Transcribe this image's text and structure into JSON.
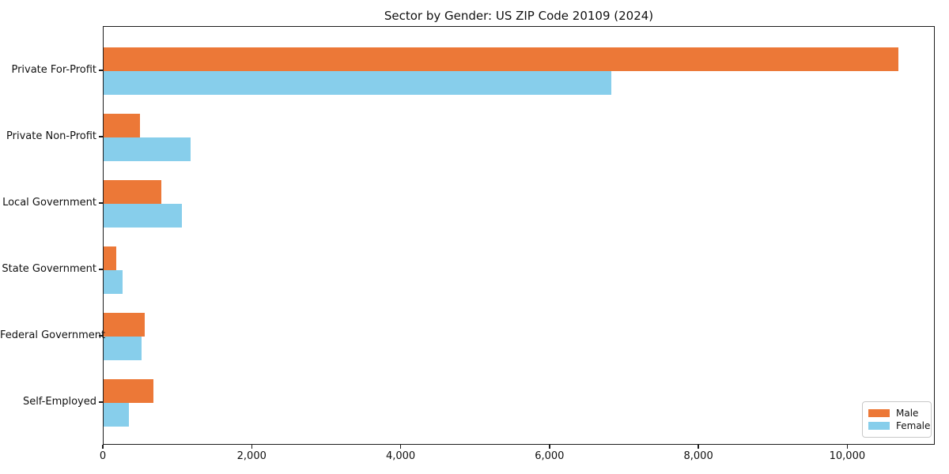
{
  "chart_data": {
    "type": "bar",
    "orientation": "horizontal",
    "title": "Sector by Gender: US ZIP Code 20109 (2024)",
    "categories": [
      "Private For-Profit",
      "Private Non-Profit",
      "Local Government",
      "State Government",
      "Federal Government",
      "Self-Employed"
    ],
    "series": [
      {
        "name": "Male",
        "color": "#ec7837",
        "values": [
          10675,
          490,
          775,
          170,
          550,
          670
        ]
      },
      {
        "name": "Female",
        "color": "#87ceeb",
        "values": [
          6820,
          1170,
          1050,
          255,
          510,
          340
        ]
      }
    ],
    "xlabel": "",
    "ylabel": "",
    "xlim": [
      0,
      11175
    ],
    "x_ticks": [
      {
        "value": 0,
        "label": "0"
      },
      {
        "value": 2000,
        "label": "2,000"
      },
      {
        "value": 4000,
        "label": "4,000"
      },
      {
        "value": 6000,
        "label": "6,000"
      },
      {
        "value": 8000,
        "label": "8,000"
      },
      {
        "value": 10000,
        "label": "10,000"
      }
    ],
    "grid": false,
    "legend_position": "lower right",
    "background_color": "#ffffff",
    "axis_color": "#1c1c1c"
  }
}
